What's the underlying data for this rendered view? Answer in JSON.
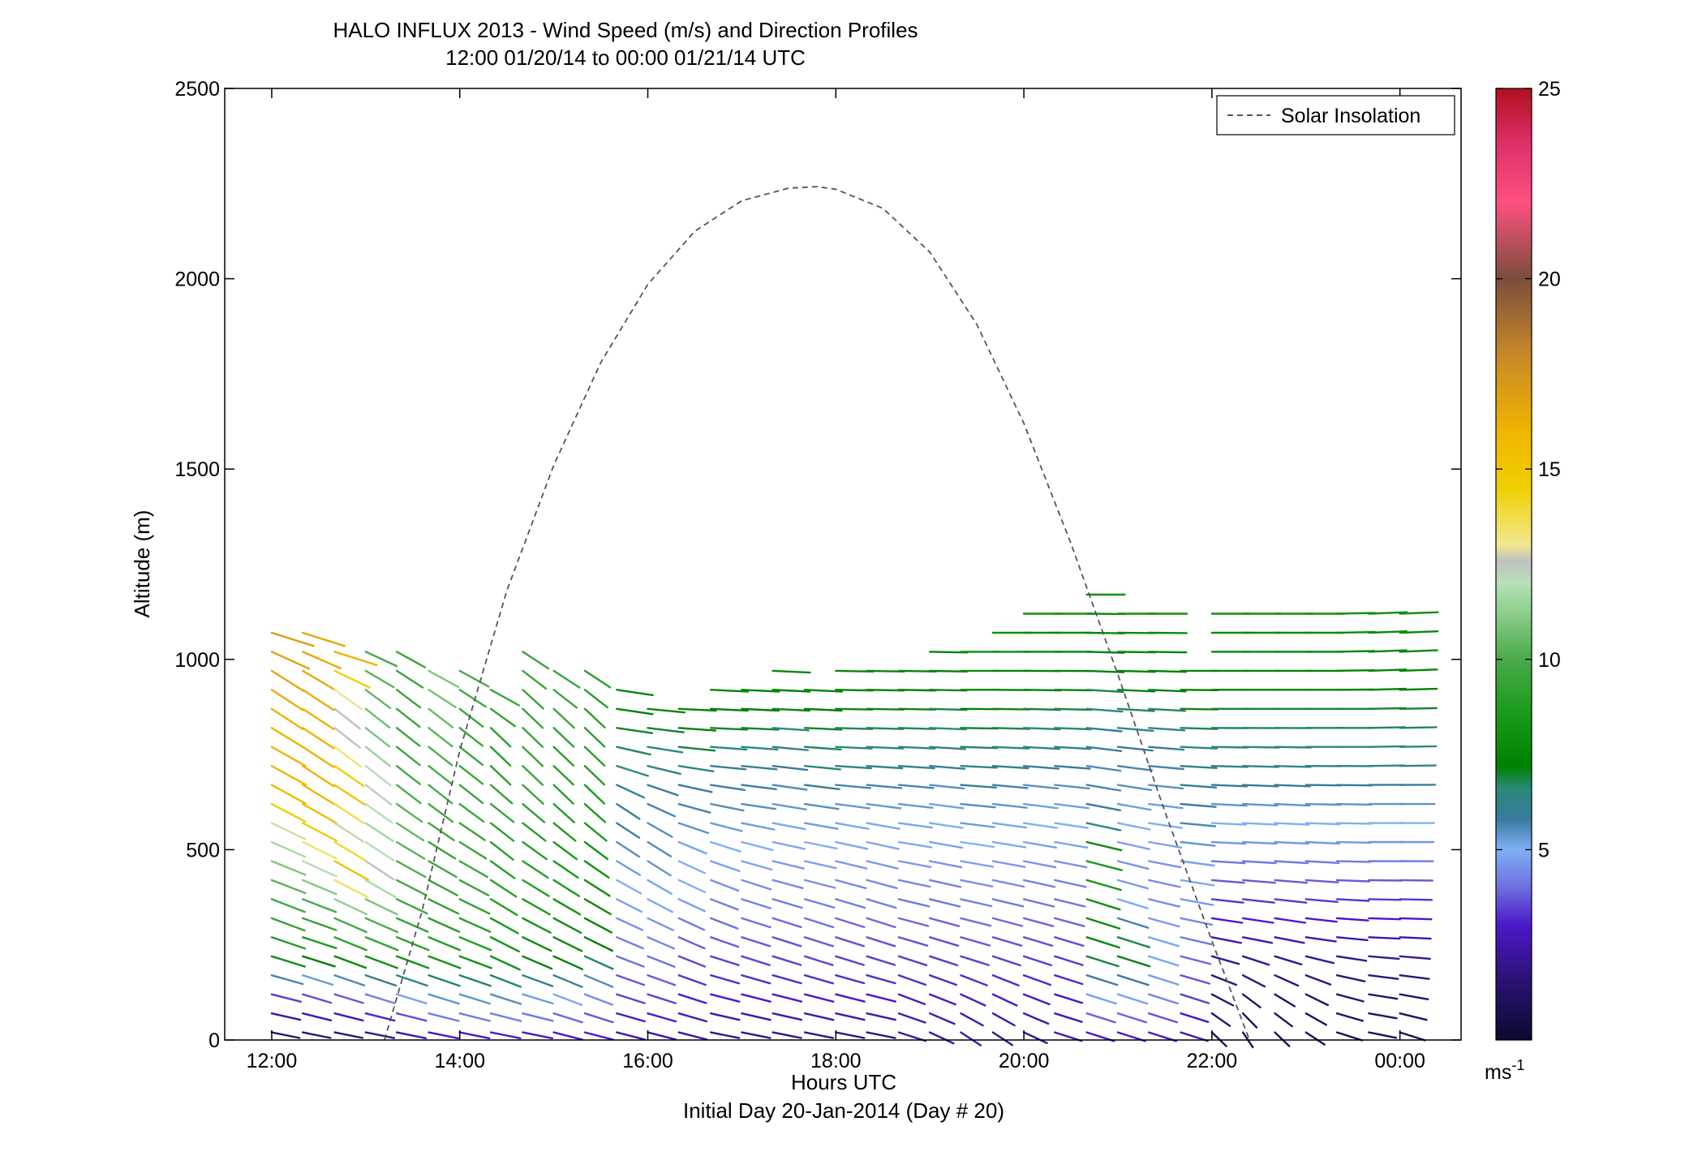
{
  "chart_data": {
    "type": "wind_barb_profile",
    "title": "HALO INFLUX 2013 - Wind Speed (m/s) and Direction Profiles",
    "subtitle": "12:00 01/20/14 to 00:00 01/21/14  UTC",
    "xlabel": "Hours UTC",
    "xlabel2": "Initial Day 20-Jan-2014 (Day # 20)",
    "ylabel": "Altitude (m)",
    "x_unit": "hours UTC",
    "xlim": [
      11.5,
      24.65
    ],
    "ylim": [
      0,
      2500
    ],
    "x_ticks": [
      {
        "value": 12,
        "label": "12:00"
      },
      {
        "value": 14,
        "label": "14:00"
      },
      {
        "value": 16,
        "label": "16:00"
      },
      {
        "value": 18,
        "label": "18:00"
      },
      {
        "value": 20,
        "label": "20:00"
      },
      {
        "value": 22,
        "label": "22:00"
      },
      {
        "value": 24,
        "label": "00:00"
      }
    ],
    "y_ticks": [
      {
        "value": 0,
        "label": "0"
      },
      {
        "value": 500,
        "label": "500"
      },
      {
        "value": 1000,
        "label": "1000"
      },
      {
        "value": 1500,
        "label": "1500"
      },
      {
        "value": 2000,
        "label": "2000"
      },
      {
        "value": 2500,
        "label": "2500"
      }
    ],
    "legend": {
      "placement": "top-right",
      "entries": [
        "Solar Insolation"
      ]
    },
    "grid": false,
    "colorbar": {
      "unit_label": "ms",
      "unit_exponent": "-1",
      "range": [
        0,
        25
      ],
      "ticks": [
        {
          "value": 5,
          "label": "5"
        },
        {
          "value": 10,
          "label": "10"
        },
        {
          "value": 15,
          "label": "15"
        },
        {
          "value": 20,
          "label": "20"
        },
        {
          "value": 25,
          "label": "25"
        }
      ],
      "stops": [
        {
          "v": 0,
          "color": "#0a0a30"
        },
        {
          "v": 1.5,
          "color": "#2a1270"
        },
        {
          "v": 3,
          "color": "#4a18c8"
        },
        {
          "v": 4,
          "color": "#6e6ee0"
        },
        {
          "v": 5,
          "color": "#7fb0f5"
        },
        {
          "v": 5.8,
          "color": "#3a7aa0"
        },
        {
          "v": 6.6,
          "color": "#2a8a7a"
        },
        {
          "v": 7.2,
          "color": "#008000"
        },
        {
          "v": 8.5,
          "color": "#189a18"
        },
        {
          "v": 10,
          "color": "#4aaa4a"
        },
        {
          "v": 11.3,
          "color": "#90d090"
        },
        {
          "v": 12,
          "color": "#b8e0b8"
        },
        {
          "v": 12.6,
          "color": "#c0c0c0"
        },
        {
          "v": 13,
          "color": "#f2e890"
        },
        {
          "v": 14.5,
          "color": "#f0d000"
        },
        {
          "v": 16,
          "color": "#f0b400"
        },
        {
          "v": 18,
          "color": "#c88828"
        },
        {
          "v": 20,
          "color": "#7a4e3c"
        },
        {
          "v": 22,
          "color": "#ff5080"
        },
        {
          "v": 23.5,
          "color": "#e0306a"
        },
        {
          "v": 25,
          "color": "#b01020"
        }
      ]
    },
    "solar_insolation": {
      "style": "dashed",
      "color": "#555555",
      "x": [
        13.2,
        13.6,
        14.0,
        14.5,
        15.0,
        15.5,
        16.0,
        16.5,
        17.0,
        17.5,
        17.8,
        18.0,
        18.5,
        19.0,
        19.5,
        20.0,
        20.5,
        21.0,
        21.5,
        22.0,
        22.4
      ],
      "y": [
        0,
        340,
        760,
        1180,
        1510,
        1780,
        1985,
        2125,
        2205,
        2238,
        2242,
        2235,
        2185,
        2070,
        1880,
        1620,
        1305,
        960,
        600,
        260,
        0
      ]
    },
    "profiles": [
      {
        "t": 12.0,
        "top": 1080,
        "speed": [
          1.5,
          3.5,
          8.5,
          9.5,
          10.5,
          12.0,
          15.5,
          16.0,
          16.0,
          16.5,
          17.0
        ],
        "dir": [
          290,
          295,
          300,
          305,
          305,
          310,
          315,
          315,
          320,
          320,
          300
        ]
      },
      {
        "t": 12.33,
        "top": 1075,
        "speed": [
          1.5,
          4.0,
          8.5,
          10.0,
          12.5,
          15.5,
          16.0,
          16.0,
          16.5,
          16.5
        ],
        "dir": [
          290,
          300,
          300,
          305,
          310,
          315,
          320,
          320,
          320,
          300
        ]
      },
      {
        "t": 12.67,
        "top": 1065,
        "speed": [
          1.5,
          4.0,
          8.5,
          10.5,
          15.5,
          12.6,
          15.5,
          12.6,
          12.6,
          16.0
        ],
        "dir": [
          290,
          300,
          305,
          310,
          315,
          320,
          320,
          325,
          325,
          300
        ]
      },
      {
        "t": 13.0,
        "top": 1050,
        "speed": [
          2.0,
          4.5,
          9.0,
          10.5,
          12.6,
          11.5,
          12.6,
          11.0,
          10.5,
          10.0
        ],
        "dir": [
          290,
          300,
          305,
          310,
          320,
          320,
          325,
          325,
          325,
          310
        ]
      },
      {
        "t": 13.33,
        "top": 1045,
        "speed": [
          2.5,
          5.0,
          9.0,
          9.5,
          10.0,
          10.5,
          10.0,
          9.5,
          9.5,
          9.5
        ],
        "dir": [
          290,
          300,
          305,
          310,
          315,
          320,
          325,
          325,
          325,
          315
        ]
      },
      {
        "t": 13.67,
        "top": 1015,
        "speed": [
          3.0,
          5.5,
          8.5,
          9.0,
          9.5,
          9.5,
          10.0,
          10.0,
          10.5,
          11.0
        ],
        "dir": [
          290,
          300,
          305,
          310,
          315,
          320,
          325,
          325,
          325,
          315
        ]
      },
      {
        "t": 14.0,
        "top": 985,
        "speed": [
          3.0,
          5.5,
          8.5,
          9.0,
          9.5,
          9.5,
          9.5,
          9.5,
          9.5,
          10.0
        ],
        "dir": [
          290,
          300,
          305,
          310,
          315,
          320,
          325,
          325,
          325,
          315
        ]
      },
      {
        "t": 14.33,
        "top": 960,
        "speed": [
          3.0,
          5.5,
          8.0,
          8.5,
          9.0,
          9.0,
          9.5,
          9.0,
          9.0,
          9.5
        ],
        "dir": [
          290,
          300,
          310,
          315,
          320,
          325,
          325,
          330,
          330,
          315
        ]
      },
      {
        "t": 14.67,
        "top": 1020,
        "speed": [
          3.0,
          5.5,
          7.5,
          8.5,
          9.0,
          9.0,
          9.5,
          9.5,
          9.5,
          9.5
        ],
        "dir": [
          290,
          300,
          310,
          315,
          320,
          325,
          330,
          330,
          330,
          320
        ]
      },
      {
        "t": 15.0,
        "top": 1010,
        "speed": [
          3.0,
          5.0,
          7.5,
          8.0,
          8.5,
          8.5,
          9.0,
          9.0,
          9.5,
          9.5
        ],
        "dir": [
          295,
          305,
          310,
          315,
          320,
          325,
          330,
          330,
          330,
          320
        ]
      },
      {
        "t": 15.33,
        "top": 985,
        "speed": [
          3.0,
          4.5,
          7.0,
          7.5,
          8.0,
          8.5,
          8.5,
          9.0,
          9.0,
          9.0
        ],
        "dir": [
          295,
          305,
          310,
          315,
          320,
          325,
          330,
          330,
          330,
          320
        ]
      },
      {
        "t": 15.67,
        "top": 935,
        "speed": [
          2.5,
          3.5,
          4.0,
          4.5,
          5.0,
          5.5,
          6.0,
          6.5,
          7.0,
          7.5
        ],
        "dir": [
          295,
          300,
          305,
          310,
          315,
          320,
          320,
          300,
          285,
          285
        ]
      },
      {
        "t": 16.0,
        "top": 915,
        "speed": [
          2.5,
          3.5,
          4.0,
          4.5,
          5.0,
          5.5,
          5.5,
          6.0,
          6.5,
          7.5
        ],
        "dir": [
          295,
          300,
          305,
          310,
          315,
          320,
          315,
          300,
          285,
          280
        ]
      },
      {
        "t": 16.33,
        "top": 905,
        "speed": [
          2.5,
          3.0,
          3.5,
          4.0,
          5.0,
          5.0,
          5.5,
          6.0,
          7.0,
          7.5
        ],
        "dir": [
          295,
          300,
          305,
          310,
          310,
          310,
          300,
          290,
          280,
          275
        ]
      },
      {
        "t": 16.67,
        "top": 955,
        "speed": [
          2.0,
          3.0,
          3.5,
          4.0,
          4.5,
          5.0,
          5.5,
          6.0,
          7.0,
          7.5
        ],
        "dir": [
          290,
          295,
          300,
          305,
          305,
          300,
          290,
          280,
          275,
          275
        ]
      },
      {
        "t": 17.0,
        "top": 955,
        "speed": [
          2.0,
          3.0,
          3.5,
          4.0,
          4.5,
          5.0,
          5.5,
          6.0,
          7.0,
          7.5
        ],
        "dir": [
          290,
          295,
          300,
          300,
          300,
          295,
          285,
          280,
          275,
          275
        ]
      },
      {
        "t": 17.33,
        "top": 975,
        "speed": [
          2.0,
          3.0,
          3.5,
          4.0,
          4.5,
          5.0,
          5.5,
          6.0,
          7.0,
          7.5
        ],
        "dir": [
          290,
          295,
          300,
          300,
          295,
          290,
          285,
          280,
          275,
          275
        ]
      },
      {
        "t": 17.67,
        "top": 960,
        "speed": [
          2.0,
          3.0,
          3.5,
          4.0,
          4.5,
          5.0,
          5.5,
          6.5,
          7.0,
          7.5
        ],
        "dir": [
          290,
          295,
          300,
          300,
          295,
          290,
          285,
          280,
          275,
          275
        ]
      },
      {
        "t": 18.0,
        "top": 1015,
        "speed": [
          2.0,
          3.0,
          3.5,
          4.0,
          4.5,
          5.0,
          5.5,
          6.5,
          7.0,
          7.5
        ],
        "dir": [
          290,
          295,
          300,
          300,
          295,
          290,
          280,
          275,
          272,
          272
        ]
      },
      {
        "t": 18.33,
        "top": 1010,
        "speed": [
          2.0,
          3.0,
          3.5,
          4.0,
          4.5,
          5.0,
          5.5,
          6.5,
          7.0,
          7.5
        ],
        "dir": [
          290,
          295,
          300,
          300,
          295,
          290,
          280,
          275,
          272,
          272
        ]
      },
      {
        "t": 18.67,
        "top": 1010,
        "speed": [
          2.5,
          3.0,
          3.5,
          4.0,
          4.5,
          5.0,
          5.5,
          6.5,
          7.0,
          7.5
        ],
        "dir": [
          300,
          305,
          300,
          295,
          290,
          285,
          280,
          275,
          272,
          272
        ]
      },
      {
        "t": 19.0,
        "top": 1020,
        "speed": [
          2.5,
          3.0,
          3.5,
          4.0,
          4.5,
          5.0,
          5.5,
          6.5,
          7.0,
          7.5
        ],
        "dir": [
          310,
          305,
          300,
          295,
          290,
          285,
          280,
          275,
          272,
          272
        ]
      },
      {
        "t": 19.33,
        "top": 1060,
        "speed": [
          2.5,
          3.0,
          3.5,
          4.0,
          4.5,
          5.0,
          5.5,
          6.5,
          7.0,
          7.5,
          8.0
        ],
        "dir": [
          320,
          310,
          300,
          295,
          290,
          285,
          280,
          275,
          272,
          270,
          270
        ]
      },
      {
        "t": 19.67,
        "top": 1075,
        "speed": [
          2.0,
          3.0,
          3.5,
          4.0,
          4.5,
          5.0,
          5.5,
          6.5,
          7.0,
          7.5,
          8.0
        ],
        "dir": [
          320,
          310,
          300,
          295,
          290,
          285,
          280,
          275,
          272,
          270,
          270
        ]
      },
      {
        "t": 20.0,
        "top": 1145,
        "speed": [
          2.0,
          3.0,
          3.5,
          4.0,
          4.5,
          5.0,
          5.5,
          6.5,
          7.0,
          7.5,
          8.0
        ],
        "dir": [
          310,
          305,
          300,
          295,
          290,
          285,
          280,
          275,
          272,
          270,
          270
        ]
      },
      {
        "t": 20.33,
        "top": 1135,
        "speed": [
          2.5,
          3.0,
          3.5,
          4.0,
          4.5,
          5.0,
          5.5,
          6.5,
          7.0,
          7.5,
          8.0
        ],
        "dir": [
          300,
          300,
          300,
          295,
          290,
          285,
          280,
          275,
          272,
          270,
          270
        ]
      },
      {
        "t": 20.67,
        "top": 1180,
        "speed": [
          3.0,
          5.0,
          7.5,
          8.0,
          8.5,
          6.0,
          5.5,
          6.0,
          7.0,
          7.5,
          8.0
        ],
        "dir": [
          300,
          300,
          300,
          300,
          295,
          290,
          285,
          280,
          275,
          272,
          270
        ]
      },
      {
        "t": 21.0,
        "top": 1160,
        "speed": [
          3.0,
          5.0,
          7.5,
          5.0,
          4.5,
          5.0,
          5.5,
          6.0,
          7.0,
          7.5,
          8.0
        ],
        "dir": [
          300,
          300,
          300,
          300,
          295,
          290,
          285,
          280,
          275,
          272,
          270
        ]
      },
      {
        "t": 21.33,
        "top": 1140,
        "speed": [
          3.0,
          4.5,
          5.0,
          4.5,
          4.5,
          5.0,
          5.5,
          6.0,
          7.0,
          7.5,
          8.0
        ],
        "dir": [
          300,
          300,
          300,
          295,
          290,
          285,
          280,
          278,
          275,
          272,
          270
        ]
      },
      {
        "t": 21.67,
        "top": 985,
        "speed": [
          2.5,
          3.5,
          4.0,
          4.5,
          5.0,
          5.5,
          6.0,
          6.5,
          7.0,
          7.5
        ],
        "dir": [
          300,
          300,
          295,
          290,
          285,
          280,
          278,
          275,
          272,
          270
        ]
      },
      {
        "t": 22.0,
        "top": 1120,
        "speed": [
          1.0,
          1.5,
          2.5,
          3.5,
          4.5,
          5.5,
          6.5,
          7.0,
          7.5,
          8.0
        ],
        "dir": [
          330,
          310,
          290,
          280,
          275,
          275,
          272,
          270,
          270,
          270
        ]
      },
      {
        "t": 22.33,
        "top": 1160,
        "speed": [
          1.0,
          1.5,
          2.5,
          3.5,
          4.5,
          5.5,
          6.5,
          7.0,
          7.5,
          8.0
        ],
        "dir": [
          340,
          320,
          290,
          280,
          275,
          275,
          272,
          270,
          270,
          270
        ]
      },
      {
        "t": 22.67,
        "top": 1165,
        "speed": [
          1.0,
          1.5,
          2.5,
          3.5,
          4.5,
          5.5,
          6.5,
          7.0,
          7.5,
          8.0
        ],
        "dir": [
          330,
          315,
          290,
          280,
          275,
          275,
          272,
          270,
          270,
          270
        ]
      },
      {
        "t": 23.0,
        "top": 1165,
        "speed": [
          1.0,
          1.5,
          2.5,
          3.5,
          4.5,
          5.5,
          6.5,
          7.0,
          7.5,
          8.0
        ],
        "dir": [
          320,
          310,
          285,
          278,
          275,
          272,
          270,
          270,
          270,
          270
        ]
      },
      {
        "t": 23.33,
        "top": 1165,
        "speed": [
          1.0,
          1.5,
          2.5,
          3.5,
          4.5,
          5.5,
          6.5,
          7.0,
          7.5,
          8.0
        ],
        "dir": [
          300,
          295,
          280,
          275,
          272,
          272,
          270,
          270,
          268,
          268
        ]
      },
      {
        "t": 23.67,
        "top": 1160,
        "speed": [
          1.0,
          1.5,
          2.5,
          3.5,
          4.5,
          5.5,
          6.5,
          7.0,
          7.5,
          8.0
        ],
        "dir": [
          290,
          285,
          275,
          272,
          270,
          270,
          268,
          268,
          266,
          266
        ]
      },
      {
        "t": 24.0,
        "top": 1130,
        "speed": [
          1.0,
          1.5,
          2.5,
          3.5,
          4.5,
          5.5,
          6.5,
          7.0,
          7.5,
          8.0
        ],
        "dir": [
          300,
          285,
          275,
          272,
          270,
          270,
          268,
          268,
          266,
          266
        ]
      }
    ]
  }
}
